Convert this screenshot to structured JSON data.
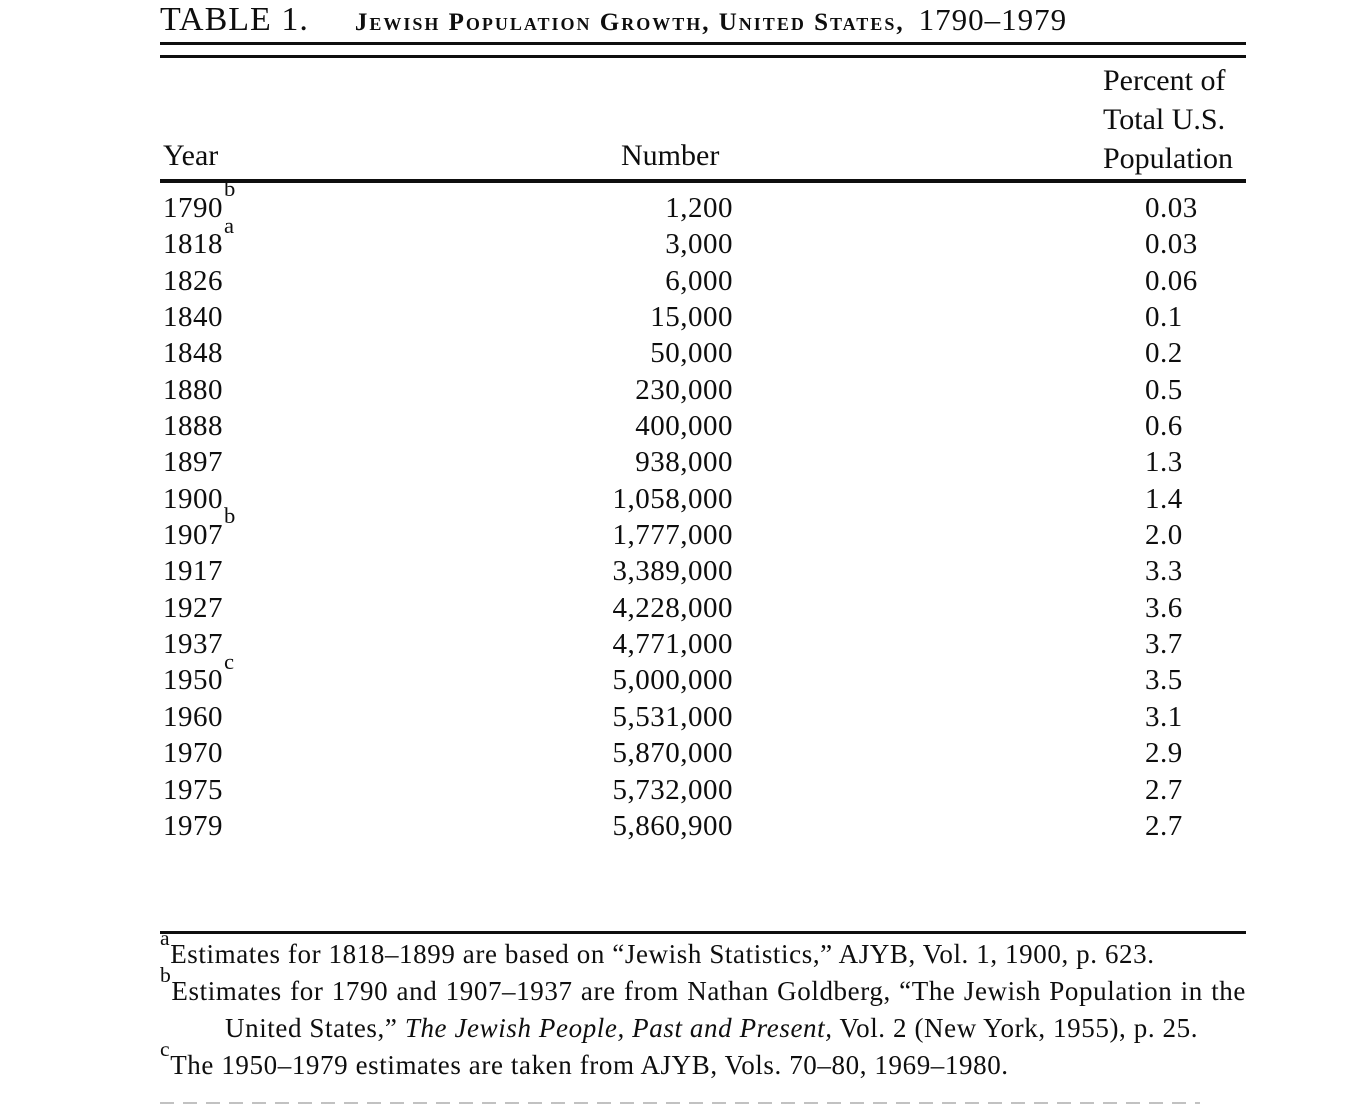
{
  "title": {
    "label": "TABLE 1.",
    "subject": "Jewish Population Growth, United States,",
    "range": "1790–1979"
  },
  "columns": {
    "year": "Year",
    "number": "Number",
    "percent_lines": [
      "Percent of",
      "Total U.S.",
      "Population"
    ]
  },
  "rows": [
    {
      "year": "1790",
      "note": "b",
      "number": "1,200",
      "percent": "0.03"
    },
    {
      "year": "1818",
      "note": "a",
      "number": "3,000",
      "percent": "0.03"
    },
    {
      "year": "1826",
      "note": "",
      "number": "6,000",
      "percent": "0.06"
    },
    {
      "year": "1840",
      "note": "",
      "number": "15,000",
      "percent": "0.1"
    },
    {
      "year": "1848",
      "note": "",
      "number": "50,000",
      "percent": "0.2"
    },
    {
      "year": "1880",
      "note": "",
      "number": "230,000",
      "percent": "0.5"
    },
    {
      "year": "1888",
      "note": "",
      "number": "400,000",
      "percent": "0.6"
    },
    {
      "year": "1897",
      "note": "",
      "number": "938,000",
      "percent": "1.3"
    },
    {
      "year": "1900",
      "note": "",
      "number": "1,058,000",
      "percent": "1.4"
    },
    {
      "year": "1907",
      "note": "b",
      "number": "1,777,000",
      "percent": "2.0"
    },
    {
      "year": "1917",
      "note": "",
      "number": "3,389,000",
      "percent": "3.3"
    },
    {
      "year": "1927",
      "note": "",
      "number": "4,228,000",
      "percent": "3.6"
    },
    {
      "year": "1937",
      "note": "",
      "number": "4,771,000",
      "percent": "3.7"
    },
    {
      "year": "1950",
      "note": "c",
      "number": "5,000,000",
      "percent": "3.5"
    },
    {
      "year": "1960",
      "note": "",
      "number": "5,531,000",
      "percent": "3.1"
    },
    {
      "year": "1970",
      "note": "",
      "number": "5,870,000",
      "percent": "2.9"
    },
    {
      "year": "1975",
      "note": "",
      "number": "5,732,000",
      "percent": "2.7"
    },
    {
      "year": "1979",
      "note": "",
      "number": "5,860,900",
      "percent": "2.7"
    }
  ],
  "footnotes": [
    {
      "marker": "a",
      "segments": [
        {
          "text": "Estimates for 1818–1899 are based on “Jewish Statistics,” AJYB, Vol. 1, 1900, p. 623.",
          "italic": false
        }
      ]
    },
    {
      "marker": "b",
      "segments": [
        {
          "text": "Estimates for 1790 and 1907–1937 are from Nathan Goldberg, “The Jewish Population in the United States,” ",
          "italic": false
        },
        {
          "text": "The Jewish People, Past and Present,",
          "italic": true
        },
        {
          "text": " Vol. 2 (New York, 1955), p. 25.",
          "italic": false
        }
      ]
    },
    {
      "marker": "c",
      "segments": [
        {
          "text": "The 1950–1979 estimates are taken from AJYB, Vols. 70–80, 1969–1980.",
          "italic": false
        }
      ]
    }
  ],
  "colors": {
    "ink": "#0e0e0e",
    "paper": "#ffffff",
    "faded_rule": "#8f8f8f"
  }
}
